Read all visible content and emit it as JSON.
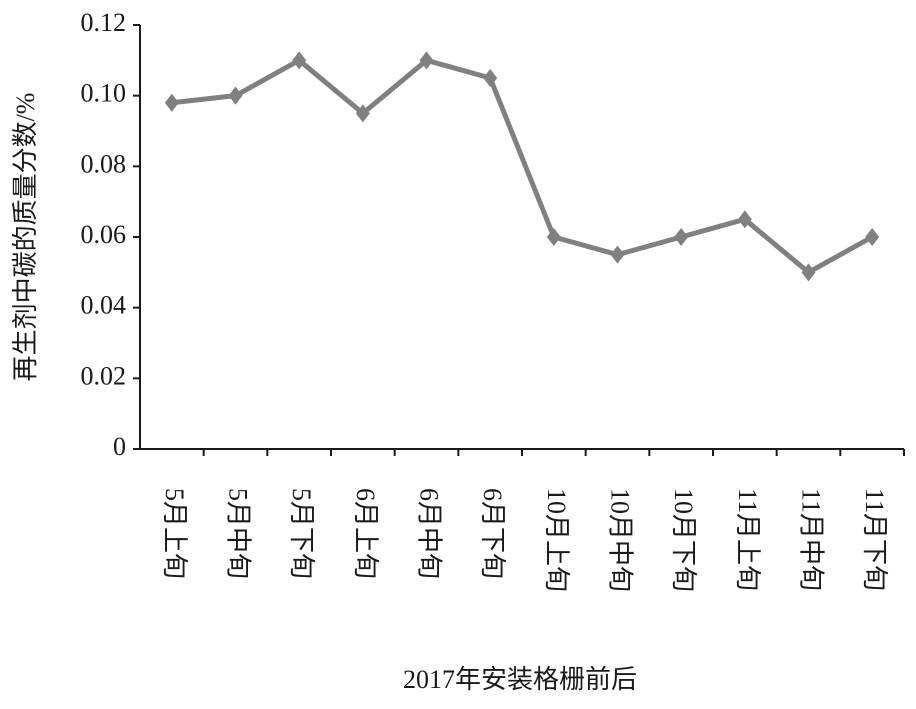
{
  "chart_data": {
    "type": "line",
    "y_label": "再生剂中碳的质量分数/%",
    "x_label": "2017年安装格栅前后",
    "categories": [
      "5月上旬",
      "5月中旬",
      "5月下旬",
      "6月上旬",
      "6月中旬",
      "6月下旬",
      "10月上旬",
      "10月中旬",
      "10月下旬",
      "11月上旬",
      "11月中旬",
      "11月下旬"
    ],
    "values": [
      0.098,
      0.1,
      0.11,
      0.095,
      0.11,
      0.105,
      0.06,
      0.055,
      0.06,
      0.065,
      0.05,
      0.06
    ],
    "color": "#808080",
    "ylim": [
      0,
      0.12
    ],
    "yticks": [
      0,
      0.02,
      0.04,
      0.06,
      0.08,
      {
        "value": 0.1,
        "label": "0.10"
      },
      0.12
    ],
    "grid": false
  }
}
